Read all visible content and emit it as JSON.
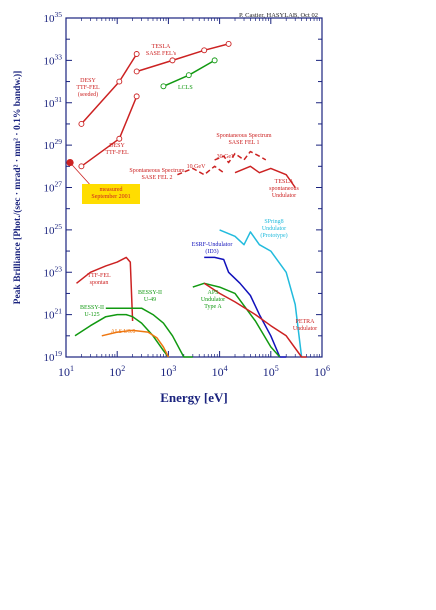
{
  "credit": "P. Castier, HASYLAB, Oct 02",
  "chart_data": {
    "type": "line",
    "xlabel": "Energy [eV]",
    "ylabel": "Peak Brilliance [Phot./(sec · mrad² · mm² · 0.1% bandw.)]",
    "xscale": "log",
    "yscale": "log",
    "xlim": [
      10,
      1000000
    ],
    "ylim": [
      1e+19,
      1e+35
    ],
    "x_ticks": [
      "10^1",
      "10^2",
      "10^3",
      "10^4",
      "10^5",
      "10^6"
    ],
    "y_ticks": [
      "10^19",
      "10^21",
      "10^23",
      "10^25",
      "10^27",
      "10^29",
      "10^31",
      "10^33",
      "10^35"
    ],
    "colors": {
      "red": "#cc2222",
      "green": "#119911",
      "orange": "#ee7711",
      "cyan": "#22bbdd",
      "blue": "#1111bb",
      "axis": "#1a237e",
      "highlight": "#ffdd00"
    },
    "series": [
      {
        "name": "DESY TTF-FEL (seeded)",
        "color": "red",
        "style": "solid",
        "markers": "circle",
        "x": [
          20,
          110,
          240
        ],
        "y": [
          1e+30,
          1e+32,
          2e+33
        ]
      },
      {
        "name": "DESY TTF-FEL",
        "color": "red",
        "style": "solid",
        "markers": "circle",
        "x": [
          20,
          110,
          240
        ],
        "y": [
          1e+28,
          2e+29,
          2e+31
        ]
      },
      {
        "name": "TESLA SASE FEL's",
        "color": "red",
        "style": "solid",
        "markers": "circle",
        "x": [
          240,
          1200,
          5000,
          15000
        ],
        "y": [
          3e+32,
          1e+33,
          3e+33,
          6e+33
        ]
      },
      {
        "name": "LCLS",
        "color": "green",
        "style": "solid",
        "markers": "circle",
        "x": [
          800,
          2500,
          8000
        ],
        "y": [
          6e+31,
          2e+32,
          1e+33
        ]
      },
      {
        "name": "Spontaneous Spectrum SASE FEL 1",
        "color": "red",
        "style": "dashed",
        "markers": "none",
        "x": [
          8000,
          12000,
          15000,
          20000,
          30000,
          40000,
          60000,
          80000
        ],
        "y": [
          2e+28,
          3e+28,
          1.5e+28,
          4e+28,
          2e+28,
          5e+28,
          3e+28,
          2e+28
        ]
      },
      {
        "name": "Spontaneous Spectrum SASE FEL 2",
        "color": "red",
        "style": "dashed",
        "markers": "none",
        "x": [
          1500,
          3000,
          5000,
          8000,
          12000
        ],
        "y": [
          4e+27,
          8e+27,
          4e+27,
          1e+28,
          5e+27
        ]
      },
      {
        "name": "TESLA spontaneous Undulator",
        "color": "red",
        "style": "solid",
        "markers": "none",
        "x": [
          20000,
          40000,
          60000,
          100000,
          200000,
          300000
        ],
        "y": [
          5e+27,
          1e+28,
          5e+27,
          8e+27,
          4e+27,
          1e+27
        ]
      },
      {
        "name": "TTF-FEL spontan",
        "color": "red",
        "style": "solid",
        "markers": "none",
        "x": [
          16,
          30,
          60,
          100,
          150,
          180,
          200
        ],
        "y": [
          3e+22,
          1e+23,
          2e+23,
          3e+23,
          5e+23,
          3e+23,
          5e+20
        ]
      },
      {
        "name": "BESSY-II U-49",
        "color": "green",
        "style": "solid",
        "markers": "none",
        "x": [
          60,
          100,
          200,
          300,
          500,
          800,
          1200,
          2000,
          3000
        ],
        "y": [
          2e+21,
          2e+21,
          2e+21,
          2e+21,
          1e+21,
          4e+20,
          1e+20,
          1e+19,
          1e+19
        ]
      },
      {
        "name": "BESSY-II U-125",
        "color": "green",
        "style": "solid",
        "markers": "none",
        "x": [
          15,
          30,
          60,
          100,
          150,
          200,
          300,
          500,
          800,
          1000
        ],
        "y": [
          1e+20,
          3e+20,
          8e+20,
          1e+21,
          1e+21,
          8e+20,
          4e+20,
          1e+20,
          2e+19,
          1e+19
        ]
      },
      {
        "name": "ALS U5.0",
        "color": "orange",
        "style": "solid",
        "markers": "none",
        "x": [
          50,
          100,
          200,
          400,
          600,
          800,
          1000
        ],
        "y": [
          1e+20,
          1.5e+20,
          1.8e+20,
          1.5e+20,
          8e+19,
          3e+19,
          1e+19
        ]
      },
      {
        "name": "ESRF-Undulator (ID3)",
        "color": "blue",
        "style": "solid",
        "markers": "none",
        "x": [
          5000,
          8000,
          12000,
          15000,
          25000,
          40000,
          60000,
          100000,
          150000,
          200000
        ],
        "y": [
          5e+23,
          5e+23,
          4e+23,
          1e+23,
          3e+22,
          8e+21,
          1e+21,
          1e+20,
          1e+19,
          1e+19
        ]
      },
      {
        "name": "SPring8 Undulator (Prototype)",
        "color": "cyan",
        "style": "solid",
        "markers": "none",
        "x": [
          10000,
          20000,
          30000,
          40000,
          60000,
          100000,
          200000,
          300000,
          400000
        ],
        "y": [
          1e+25,
          5e+24,
          2e+24,
          8e+24,
          2e+24,
          1e+24,
          1e+23,
          3e+21,
          1e+19
        ]
      },
      {
        "name": "APS Undulator Type A",
        "color": "green",
        "style": "solid",
        "markers": "none",
        "x": [
          3000,
          5000,
          10000,
          20000,
          50000,
          100000,
          150000
        ],
        "y": [
          2e+22,
          3e+22,
          2e+22,
          1e+22,
          5e+20,
          3e+19,
          1e+19
        ]
      },
      {
        "name": "PETRA Undulator",
        "color": "red",
        "style": "solid",
        "markers": "none",
        "x": [
          5000,
          10000,
          20000,
          50000,
          100000,
          200000,
          400000,
          500000
        ],
        "y": [
          3e+22,
          1e+22,
          4e+21,
          1e+21,
          3e+20,
          1e+20,
          1e+19,
          1e+19
        ]
      }
    ],
    "annotations": [
      {
        "id": "desy-seeded",
        "lines": [
          "DESY",
          "TTF-FEL",
          "(seeded)"
        ],
        "color": "red"
      },
      {
        "id": "desy-ttf",
        "lines": [
          "DESY",
          "TTF-FEL"
        ],
        "color": "red"
      },
      {
        "id": "tesla-sase",
        "lines": [
          "TESLA",
          "SASE FEL's"
        ],
        "color": "red"
      },
      {
        "id": "lcls",
        "lines": [
          "LCLS"
        ],
        "color": "green"
      },
      {
        "id": "spont-1",
        "lines": [
          "Spontaneous Spectrum",
          "SASE FEL 1"
        ],
        "color": "red"
      },
      {
        "id": "gev-30",
        "lines": [
          "30 GeV"
        ],
        "color": "red"
      },
      {
        "id": "gev-10",
        "lines": [
          "10 GeV"
        ],
        "color": "red"
      },
      {
        "id": "spont-2",
        "lines": [
          "Spontaneous Spectrum",
          "SASE FEL 2"
        ],
        "color": "red"
      },
      {
        "id": "tesla-spont",
        "lines": [
          "TESLA",
          "spontaneous",
          "Undulator"
        ],
        "color": "red"
      },
      {
        "id": "measured",
        "lines": [
          "measured",
          "September 2001"
        ],
        "color": "red",
        "highlight": true
      },
      {
        "id": "spring8",
        "lines": [
          "SPring8",
          "Undulator",
          "(Prototype)"
        ],
        "color": "cyan"
      },
      {
        "id": "esrf",
        "lines": [
          "ESRF-Undulator",
          "(ID3)"
        ],
        "color": "blue"
      },
      {
        "id": "ttf-spont",
        "lines": [
          "TTF-FEL",
          "spontan"
        ],
        "color": "red"
      },
      {
        "id": "bessy-u49",
        "lines": [
          "BESSY-II",
          "U-49"
        ],
        "color": "green"
      },
      {
        "id": "aps",
        "lines": [
          "APS",
          "Undulator",
          "Type A"
        ],
        "color": "green"
      },
      {
        "id": "bessy-u125",
        "lines": [
          "BESSY-II",
          "U-125"
        ],
        "color": "green"
      },
      {
        "id": "als",
        "lines": [
          "ALS U5.0"
        ],
        "color": "orange"
      },
      {
        "id": "petra",
        "lines": [
          "PETRA",
          "Undulator"
        ],
        "color": "red"
      }
    ],
    "measured_point": {
      "x": 12,
      "y": 1.5e+28,
      "color": "red"
    }
  }
}
